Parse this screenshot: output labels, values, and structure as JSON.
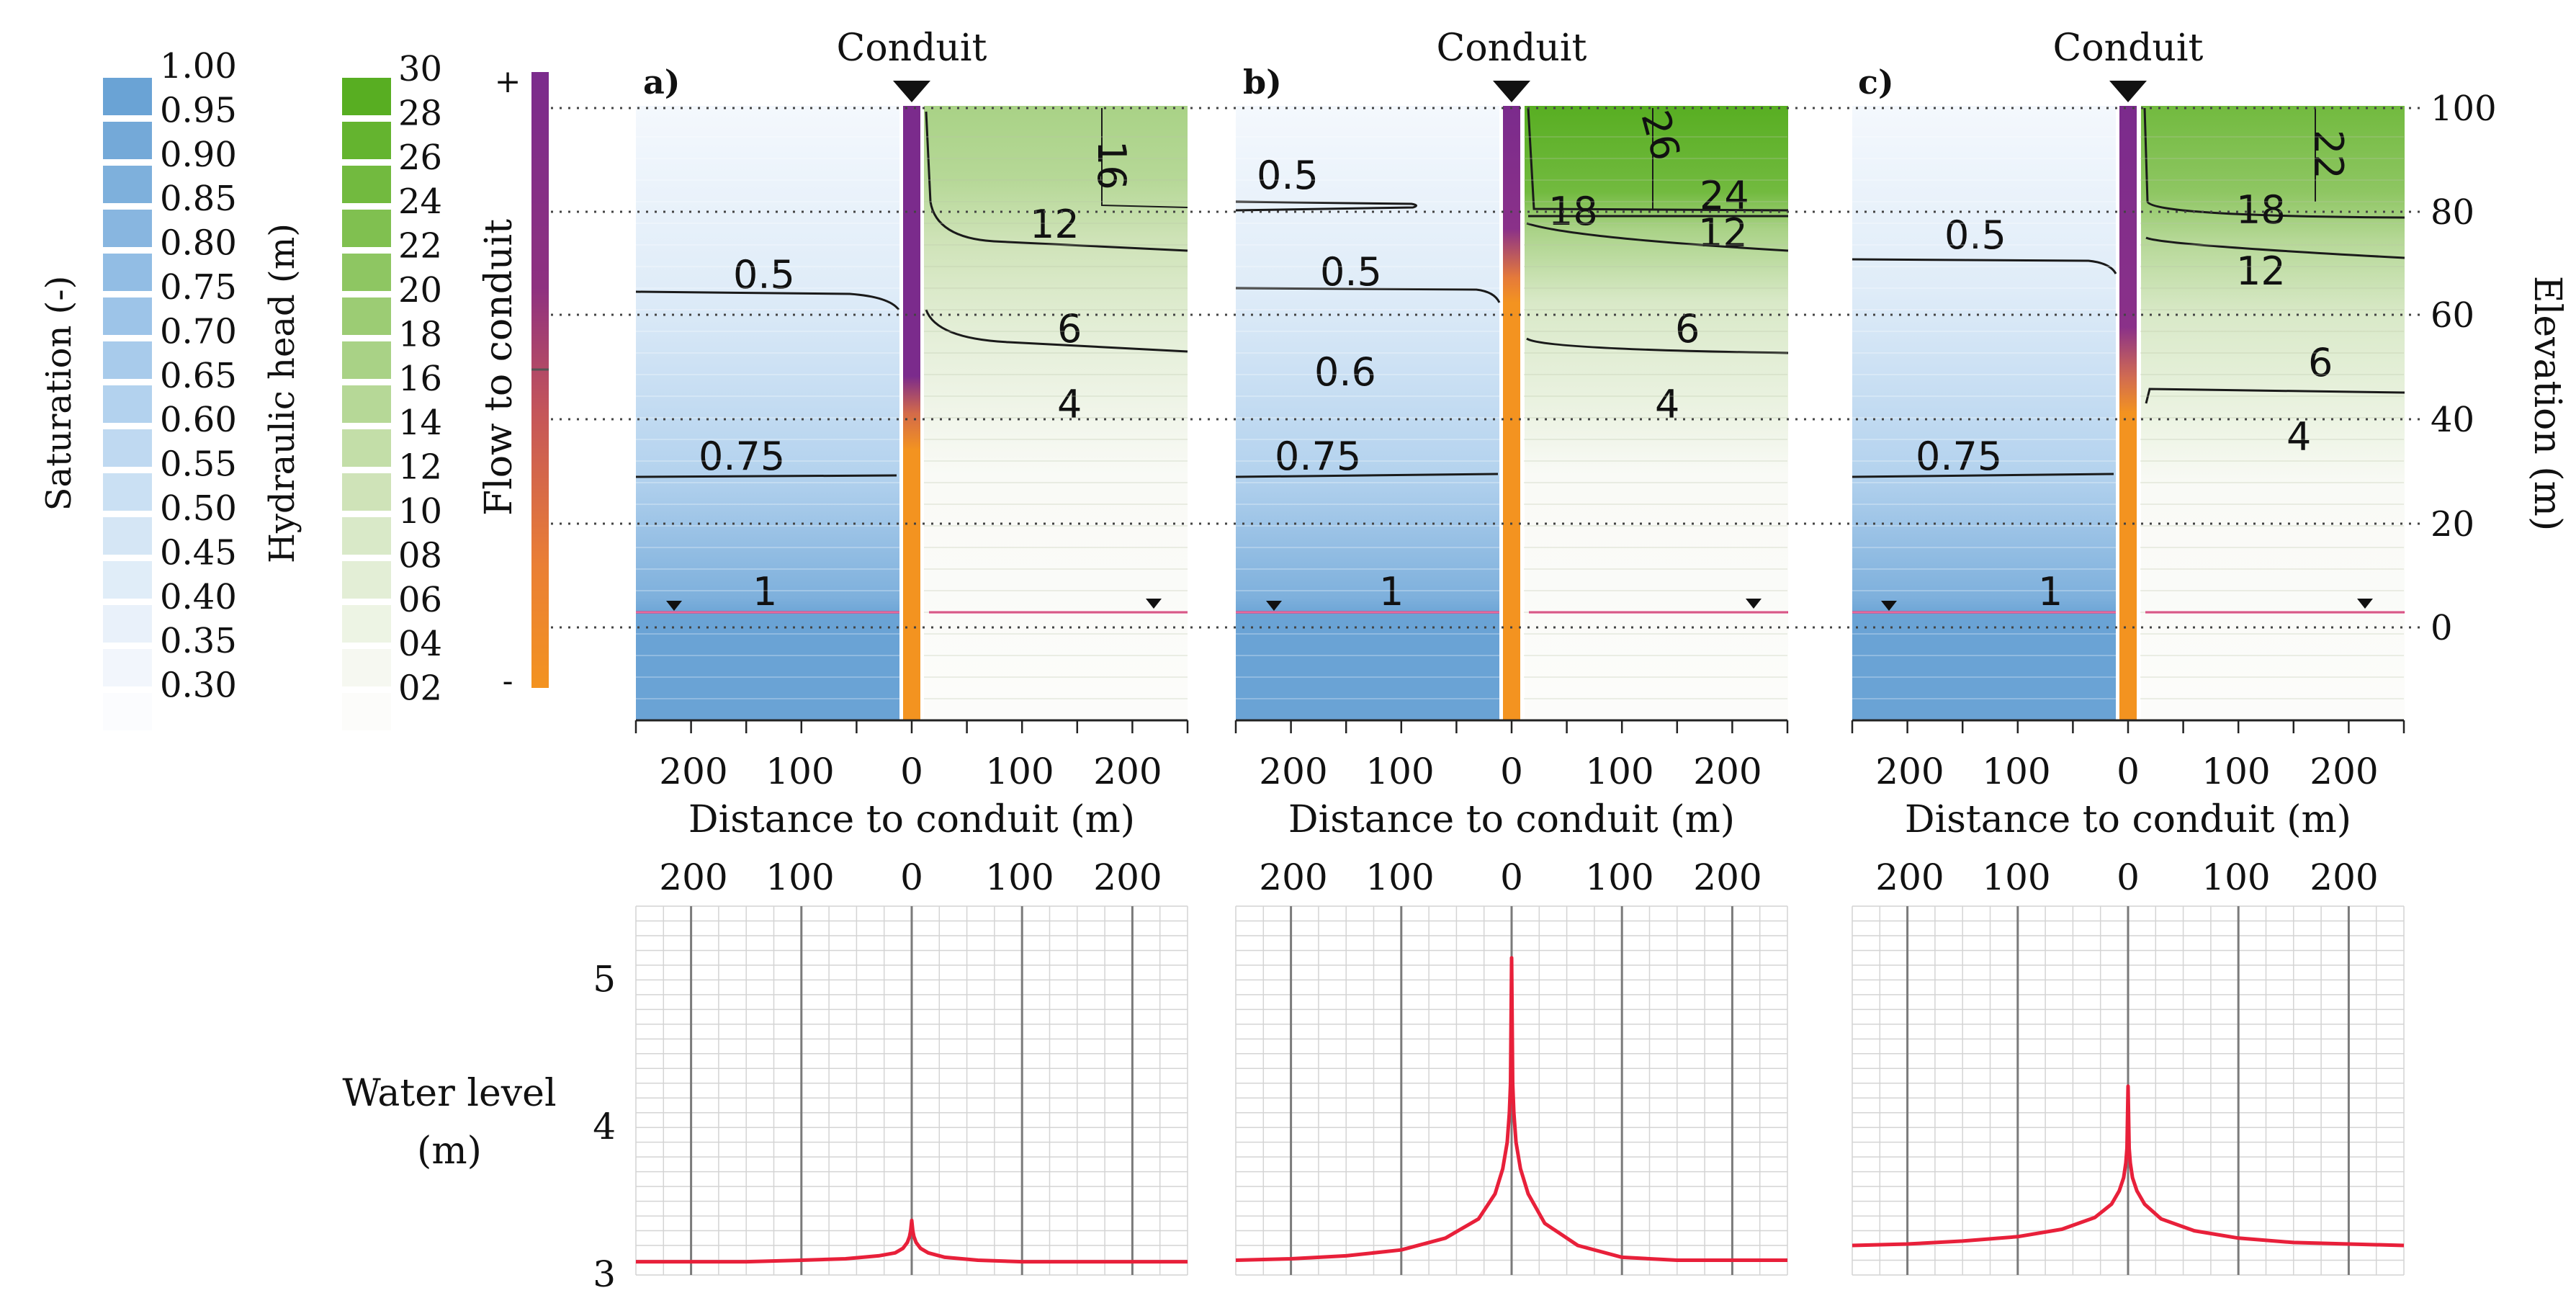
{
  "figure": {
    "type": "multi-panel groundwater flow figure"
  },
  "colors": {
    "saturation_ramp": [
      "#fbfcfe",
      "#f2f6fc",
      "#e9f1fa",
      "#e0edf8",
      "#d5e6f5",
      "#cae0f3",
      "#bfd9f1",
      "#b3d2ee",
      "#a8cbeb",
      "#9dc4e8",
      "#92bde4",
      "#88b6e0",
      "#7eb0dc",
      "#74a9d8",
      "#6aa3d5"
    ],
    "head_ramp": [
      "#fcfcfa",
      "#f6f8f1",
      "#edf4e4",
      "#e3eed6",
      "#d9e9c8",
      "#cfe3b8",
      "#c3dea8",
      "#b6d897",
      "#a9d286",
      "#9ccc74",
      "#8ec662",
      "#80c050",
      "#72ba3f",
      "#64b42f",
      "#58ae22"
    ],
    "flow_positive": "#7b2b8c",
    "flow_negative": "#f39320",
    "water_level_line": "#e8203a",
    "water_table": "#e0357a",
    "contour": "#1a1a1a"
  },
  "legends": {
    "saturation": {
      "title": "Saturation (-)",
      "ticks": [
        "1.00",
        "0.95",
        "0.90",
        "0.85",
        "0.80",
        "0.75",
        "0.70",
        "0.65",
        "0.60",
        "0.55",
        "0.50",
        "0.45",
        "0.40",
        "0.35",
        "0.30"
      ]
    },
    "hydraulic_head": {
      "title": "Hydraulic head (m)",
      "ticks": [
        "30",
        "28",
        "26",
        "24",
        "22",
        "20",
        "18",
        "16",
        "14",
        "12",
        "10",
        "08",
        "06",
        "04",
        "02"
      ]
    },
    "flow": {
      "title": "Flow to conduit",
      "plus": "+",
      "minus": "-"
    }
  },
  "panels": [
    {
      "label": "a)",
      "conduit": "Conduit",
      "sat_labels": [
        "0.5",
        "0.75",
        "1"
      ],
      "head_labels": [
        "16",
        "12",
        "6",
        "4"
      ],
      "flow_split": 0.5
    },
    {
      "label": "b)",
      "conduit": "Conduit",
      "sat_labels": [
        "0.5",
        "0.5",
        "0.6",
        "0.75",
        "1"
      ],
      "head_labels": [
        "26",
        "24",
        "18",
        "12",
        "6",
        "4"
      ],
      "flow_split": 0.78
    },
    {
      "label": "c)",
      "conduit": "Conduit",
      "sat_labels": [
        "0.5",
        "0.75",
        "1"
      ],
      "head_labels": [
        "22",
        "18",
        "12",
        "6",
        "4"
      ],
      "flow_split": 0.78
    }
  ],
  "axes": {
    "distance_title": "Distance to conduit (m)",
    "distance_ticks": [
      "200",
      "100",
      "0",
      "100",
      "200"
    ],
    "elevation_title": "Elevation (m)",
    "elevation_ticks": [
      "100",
      "80",
      "60",
      "40",
      "20",
      "0"
    ],
    "water_level_title_line1": "Water level",
    "water_level_title_line2": "(m)",
    "water_level_ticks": [
      "5",
      "4",
      "3"
    ]
  },
  "chart_data": [
    {
      "type": "line",
      "panel": "a",
      "title": "",
      "xlabel": "Distance to conduit (m)",
      "ylabel": "Water level (m)",
      "xlim": [
        -250,
        250
      ],
      "ylim": [
        3,
        5.5
      ],
      "series": [
        {
          "name": "water level",
          "x": [
            -250,
            -200,
            -150,
            -100,
            -60,
            -30,
            -15,
            -8,
            -4,
            -2,
            -1,
            0,
            1,
            2,
            4,
            8,
            15,
            30,
            60,
            100,
            150,
            200,
            250
          ],
          "y": [
            3.09,
            3.09,
            3.09,
            3.1,
            3.11,
            3.13,
            3.15,
            3.18,
            3.22,
            3.26,
            3.3,
            3.37,
            3.3,
            3.26,
            3.22,
            3.18,
            3.15,
            3.12,
            3.1,
            3.09,
            3.09,
            3.09,
            3.09
          ]
        }
      ]
    },
    {
      "type": "line",
      "panel": "b",
      "title": "",
      "xlabel": "Distance to conduit (m)",
      "ylabel": "Water level (m)",
      "xlim": [
        -250,
        250
      ],
      "ylim": [
        3,
        5.5
      ],
      "series": [
        {
          "name": "water level",
          "x": [
            -250,
            -200,
            -150,
            -100,
            -60,
            -30,
            -15,
            -8,
            -4,
            -2,
            -1,
            0,
            1,
            2,
            4,
            8,
            15,
            30,
            60,
            100,
            150,
            200,
            250
          ],
          "y": [
            3.1,
            3.11,
            3.13,
            3.17,
            3.25,
            3.38,
            3.55,
            3.72,
            3.9,
            4.1,
            4.3,
            5.15,
            4.3,
            4.1,
            3.9,
            3.72,
            3.55,
            3.35,
            3.2,
            3.12,
            3.1,
            3.1,
            3.1
          ]
        }
      ]
    },
    {
      "type": "line",
      "panel": "c",
      "title": "",
      "xlabel": "Distance to conduit (m)",
      "ylabel": "Water level (m)",
      "xlim": [
        -250,
        250
      ],
      "ylim": [
        3,
        5.5
      ],
      "series": [
        {
          "name": "water level",
          "x": [
            -250,
            -200,
            -150,
            -100,
            -60,
            -30,
            -15,
            -8,
            -4,
            -2,
            -1,
            0,
            1,
            2,
            4,
            8,
            15,
            30,
            60,
            100,
            150,
            200,
            250
          ],
          "y": [
            3.2,
            3.21,
            3.23,
            3.26,
            3.31,
            3.39,
            3.48,
            3.57,
            3.66,
            3.76,
            3.86,
            4.28,
            3.86,
            3.76,
            3.66,
            3.57,
            3.48,
            3.38,
            3.3,
            3.25,
            3.22,
            3.21,
            3.2
          ]
        }
      ]
    }
  ]
}
